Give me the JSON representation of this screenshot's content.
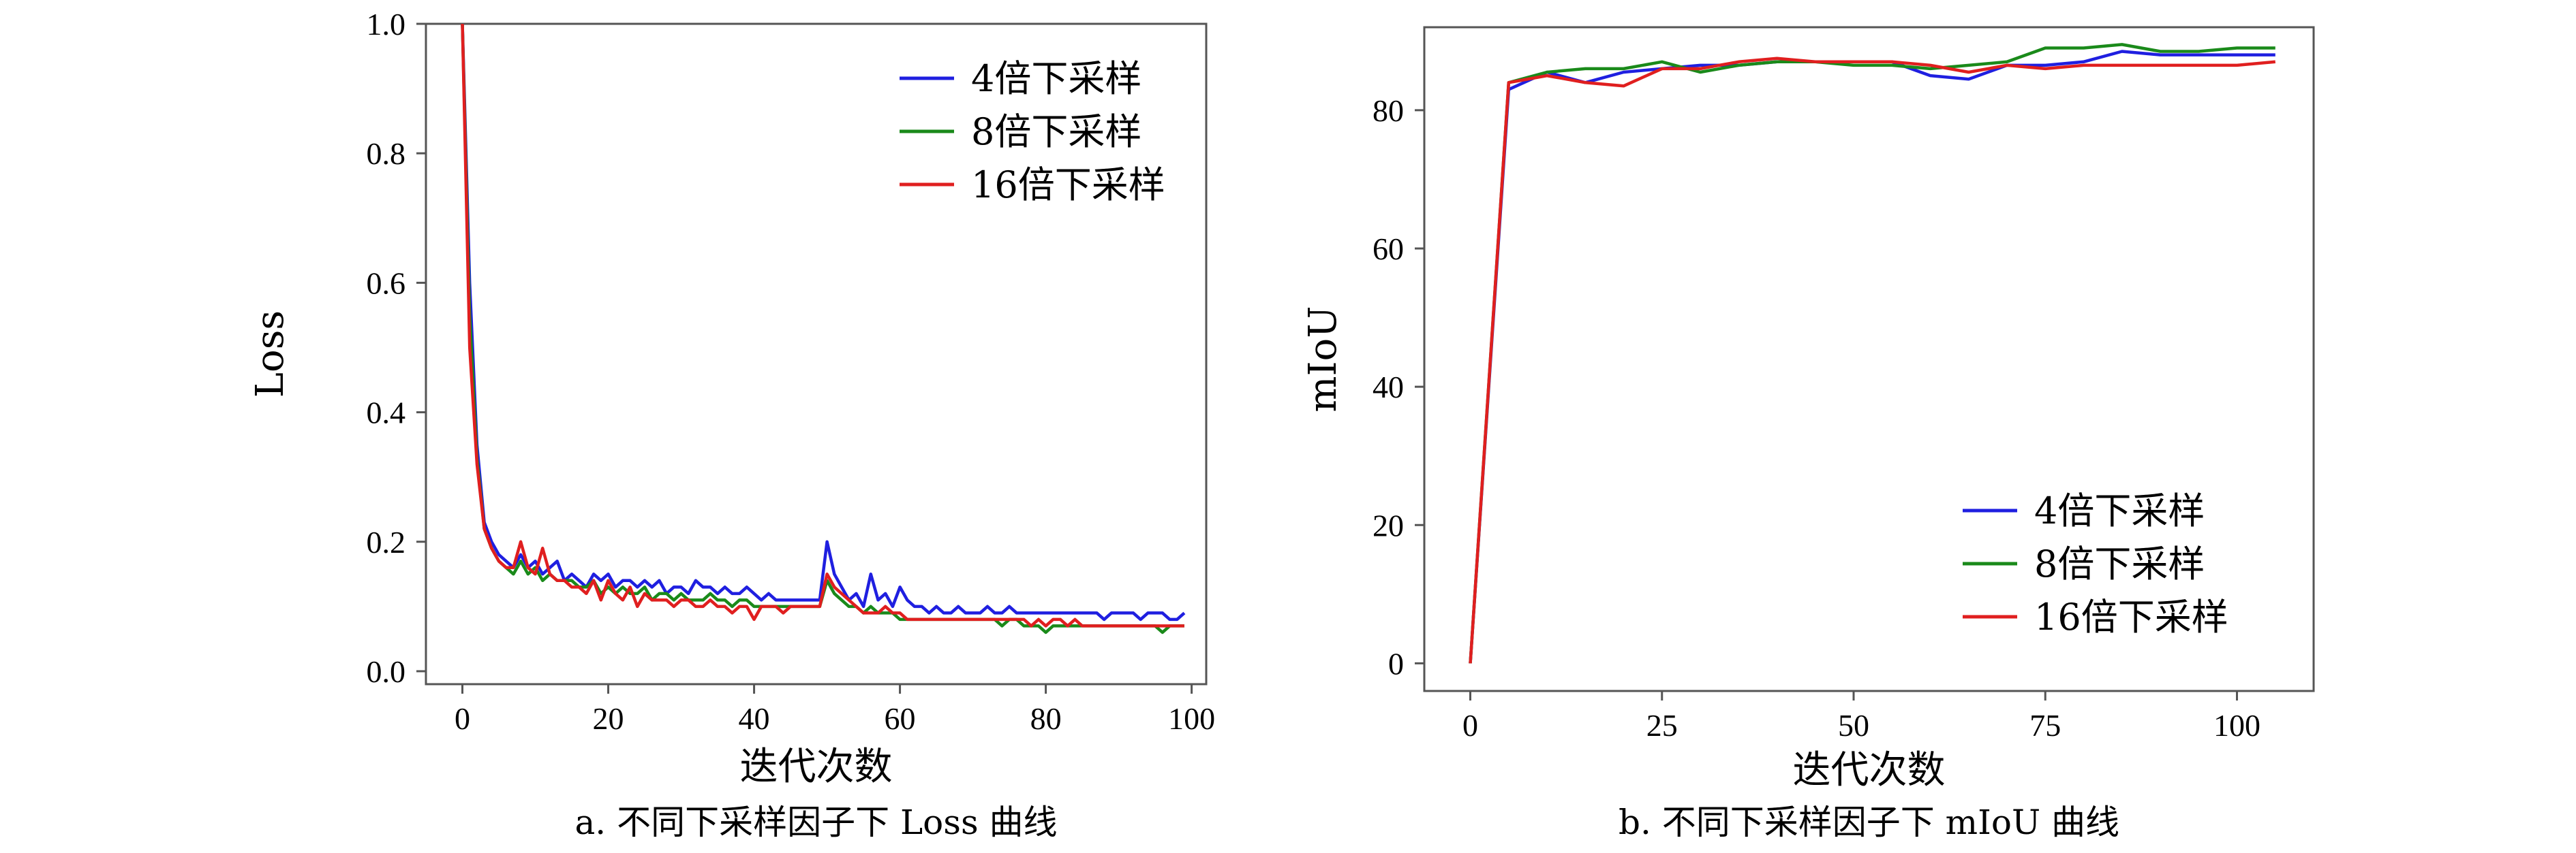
{
  "chart_data": [
    {
      "type": "line",
      "title": "",
      "caption": "a. 不同下采样因子下 Loss 曲线",
      "xlabel": "迭代次数",
      "ylabel": "Loss",
      "xlim": [
        -5,
        102
      ],
      "ylim": [
        -0.02,
        1.0
      ],
      "xticks": [
        0,
        20,
        40,
        60,
        80,
        100
      ],
      "yticks": [
        0.0,
        0.2,
        0.4,
        0.6,
        0.8,
        1.0
      ],
      "grid": false,
      "legend_position": "top-right",
      "x": [
        0,
        1,
        2,
        3,
        4,
        5,
        6,
        7,
        8,
        9,
        10,
        11,
        12,
        13,
        14,
        15,
        16,
        17,
        18,
        19,
        20,
        21,
        22,
        23,
        24,
        25,
        26,
        27,
        28,
        29,
        30,
        31,
        32,
        33,
        34,
        35,
        36,
        37,
        38,
        39,
        40,
        41,
        42,
        43,
        44,
        45,
        46,
        47,
        48,
        49,
        50,
        51,
        52,
        53,
        54,
        55,
        56,
        57,
        58,
        59,
        60,
        61,
        62,
        63,
        64,
        65,
        66,
        67,
        68,
        69,
        70,
        71,
        72,
        73,
        74,
        75,
        76,
        77,
        78,
        79,
        80,
        81,
        82,
        83,
        84,
        85,
        86,
        87,
        88,
        89,
        90,
        91,
        92,
        93,
        94,
        95,
        96,
        97,
        98,
        99
      ],
      "series": [
        {
          "name": "4倍下采样",
          "color": "#1f1fe0",
          "values": [
            1.0,
            0.6,
            0.35,
            0.23,
            0.2,
            0.18,
            0.17,
            0.16,
            0.18,
            0.16,
            0.17,
            0.15,
            0.16,
            0.17,
            0.14,
            0.15,
            0.14,
            0.13,
            0.15,
            0.14,
            0.15,
            0.13,
            0.14,
            0.14,
            0.13,
            0.14,
            0.13,
            0.14,
            0.12,
            0.13,
            0.13,
            0.12,
            0.14,
            0.13,
            0.13,
            0.12,
            0.13,
            0.12,
            0.12,
            0.13,
            0.12,
            0.11,
            0.12,
            0.11,
            0.11,
            0.11,
            0.11,
            0.11,
            0.11,
            0.11,
            0.2,
            0.15,
            0.13,
            0.11,
            0.12,
            0.1,
            0.15,
            0.11,
            0.12,
            0.1,
            0.13,
            0.11,
            0.1,
            0.1,
            0.09,
            0.1,
            0.09,
            0.09,
            0.1,
            0.09,
            0.09,
            0.09,
            0.1,
            0.09,
            0.09,
            0.1,
            0.09,
            0.09,
            0.09,
            0.09,
            0.09,
            0.09,
            0.09,
            0.09,
            0.09,
            0.09,
            0.09,
            0.09,
            0.08,
            0.09,
            0.09,
            0.09,
            0.09,
            0.08,
            0.09,
            0.09,
            0.09,
            0.08,
            0.08,
            0.09
          ]
        },
        {
          "name": "8倍下采样",
          "color": "#1a8a1a",
          "values": [
            1.0,
            0.55,
            0.33,
            0.22,
            0.19,
            0.17,
            0.16,
            0.15,
            0.17,
            0.15,
            0.16,
            0.14,
            0.15,
            0.14,
            0.14,
            0.14,
            0.13,
            0.13,
            0.14,
            0.12,
            0.13,
            0.12,
            0.13,
            0.12,
            0.12,
            0.13,
            0.11,
            0.12,
            0.12,
            0.11,
            0.12,
            0.11,
            0.11,
            0.11,
            0.12,
            0.11,
            0.11,
            0.1,
            0.11,
            0.11,
            0.1,
            0.1,
            0.1,
            0.1,
            0.1,
            0.1,
            0.1,
            0.1,
            0.1,
            0.1,
            0.14,
            0.12,
            0.11,
            0.1,
            0.1,
            0.09,
            0.1,
            0.09,
            0.09,
            0.09,
            0.08,
            0.08,
            0.08,
            0.08,
            0.08,
            0.08,
            0.08,
            0.08,
            0.08,
            0.08,
            0.08,
            0.08,
            0.08,
            0.08,
            0.07,
            0.08,
            0.08,
            0.07,
            0.07,
            0.07,
            0.06,
            0.07,
            0.07,
            0.07,
            0.07,
            0.07,
            0.07,
            0.07,
            0.07,
            0.07,
            0.07,
            0.07,
            0.07,
            0.07,
            0.07,
            0.07,
            0.06,
            0.07,
            0.07,
            0.07
          ]
        },
        {
          "name": "16倍下采样",
          "color": "#e01f1f",
          "values": [
            1.0,
            0.5,
            0.32,
            0.22,
            0.19,
            0.17,
            0.16,
            0.16,
            0.2,
            0.16,
            0.15,
            0.19,
            0.15,
            0.14,
            0.14,
            0.13,
            0.13,
            0.12,
            0.14,
            0.11,
            0.14,
            0.12,
            0.11,
            0.13,
            0.1,
            0.12,
            0.11,
            0.11,
            0.11,
            0.1,
            0.11,
            0.11,
            0.1,
            0.1,
            0.11,
            0.1,
            0.1,
            0.09,
            0.1,
            0.1,
            0.08,
            0.1,
            0.1,
            0.1,
            0.09,
            0.1,
            0.1,
            0.1,
            0.1,
            0.1,
            0.15,
            0.13,
            0.12,
            0.11,
            0.1,
            0.09,
            0.09,
            0.09,
            0.1,
            0.09,
            0.09,
            0.08,
            0.08,
            0.08,
            0.08,
            0.08,
            0.08,
            0.08,
            0.08,
            0.08,
            0.08,
            0.08,
            0.08,
            0.08,
            0.08,
            0.08,
            0.08,
            0.08,
            0.07,
            0.08,
            0.07,
            0.08,
            0.08,
            0.07,
            0.08,
            0.07,
            0.07,
            0.07,
            0.07,
            0.07,
            0.07,
            0.07,
            0.07,
            0.07,
            0.07,
            0.07,
            0.07,
            0.07,
            0.07,
            0.07
          ]
        }
      ]
    },
    {
      "type": "line",
      "title": "",
      "caption": "b. 不同下采样因子下 mIoU 曲线",
      "xlabel": "迭代次数",
      "ylabel": "mIoU",
      "xlim": [
        -6,
        110
      ],
      "ylim": [
        -4,
        92
      ],
      "xticks": [
        0,
        25,
        50,
        75,
        100
      ],
      "yticks": [
        0,
        20,
        40,
        60,
        80
      ],
      "grid": false,
      "legend_position": "lower-right",
      "x": [
        0,
        5,
        10,
        15,
        20,
        25,
        30,
        35,
        40,
        45,
        50,
        55,
        60,
        65,
        70,
        75,
        80,
        85,
        90,
        95,
        100,
        105
      ],
      "series": [
        {
          "name": "4倍下采样",
          "color": "#1f1fe0",
          "values": [
            0,
            83,
            85.5,
            84,
            85.5,
            86,
            86.5,
            86.5,
            87,
            87,
            87,
            87,
            85,
            84.5,
            86.5,
            86.5,
            87,
            88.5,
            88,
            88,
            88,
            88
          ]
        },
        {
          "name": "8倍下采样",
          "color": "#1a8a1a",
          "values": [
            0,
            84,
            85.5,
            86,
            86,
            87,
            85.5,
            86.5,
            87,
            87,
            86.5,
            86.5,
            86,
            86.5,
            87,
            89,
            89,
            89.5,
            88.5,
            88.5,
            89,
            89
          ]
        },
        {
          "name": "16倍下采样",
          "color": "#e01f1f",
          "values": [
            0,
            84,
            85,
            84,
            83.5,
            86,
            86,
            87,
            87.5,
            87,
            87,
            87,
            86.5,
            85.5,
            86.5,
            86,
            86.5,
            86.5,
            86.5,
            86.5,
            86.5,
            87
          ]
        }
      ]
    }
  ]
}
